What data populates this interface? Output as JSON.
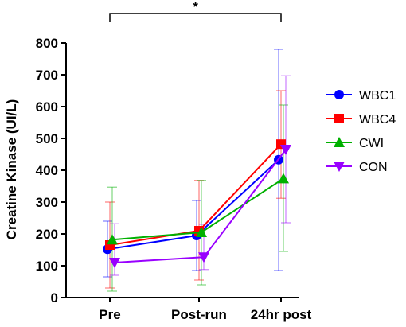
{
  "chart_data": {
    "type": "line",
    "ylabel": "Creatine Kinase (UI/L)",
    "xlabel": "",
    "categories": [
      "Pre",
      "Post-run",
      "24hr post"
    ],
    "ylim": [
      0,
      800
    ],
    "yticks": [
      0,
      100,
      200,
      300,
      400,
      500,
      600,
      700,
      800
    ],
    "legend_position": "right",
    "significance": {
      "label": "*",
      "from": "Pre",
      "to": "24hr post"
    },
    "series": [
      {
        "name": "WBC1",
        "color": "#0000ff",
        "marker": "circle",
        "values": [
          152,
          195,
          433
        ],
        "err_low": [
          65,
          85,
          85
        ],
        "err_high": [
          240,
          305,
          780
        ]
      },
      {
        "name": "WBC4",
        "color": "#ff0000",
        "marker": "square",
        "values": [
          165,
          210,
          482
        ],
        "err_low": [
          30,
          55,
          312
        ],
        "err_high": [
          300,
          368,
          650
        ]
      },
      {
        "name": "CWI",
        "color": "#00b000",
        "marker": "triangle-up",
        "values": [
          182,
          205,
          374
        ],
        "err_low": [
          20,
          40,
          145
        ],
        "err_high": [
          347,
          368,
          605
        ]
      },
      {
        "name": "CON",
        "color": "#9900ff",
        "marker": "triangle-down",
        "values": [
          110,
          127,
          465
        ],
        "err_low": [
          70,
          88,
          235
        ],
        "err_high": [
          232,
          230,
          697
        ]
      }
    ]
  }
}
